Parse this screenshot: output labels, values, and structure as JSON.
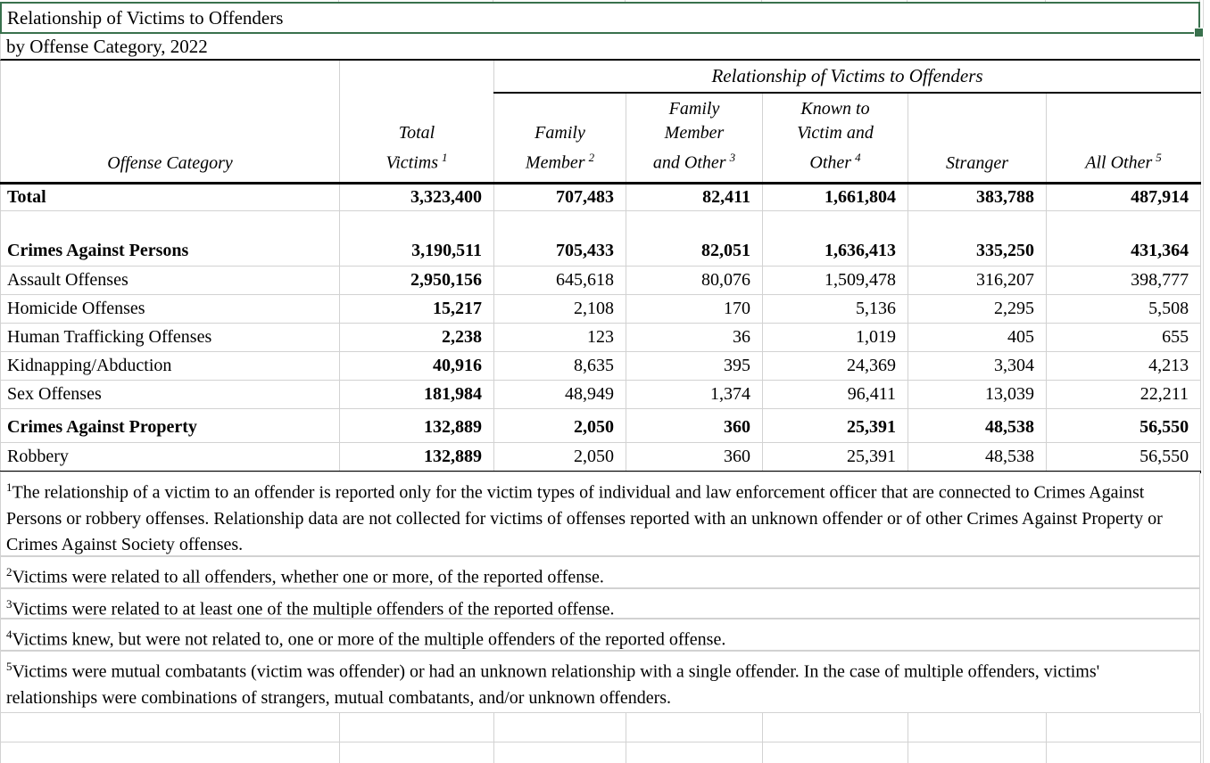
{
  "title_block": {
    "line1": "Relationship of Victims to Offenders",
    "line2": "by Offense Category, 2022"
  },
  "table": {
    "group_header": "Relationship of Victims to Offenders",
    "columns": [
      {
        "lines": [
          "Offense Category"
        ],
        "sup": ""
      },
      {
        "lines": [
          "Total",
          "Victims"
        ],
        "sup": "1"
      },
      {
        "lines": [
          "Family",
          "Member"
        ],
        "sup": "2"
      },
      {
        "lines": [
          "Family",
          "Member",
          "and Other"
        ],
        "sup": "3"
      },
      {
        "lines": [
          "Known to",
          "Victim and",
          "Other"
        ],
        "sup": "4"
      },
      {
        "lines": [
          "Stranger"
        ],
        "sup": ""
      },
      {
        "lines": [
          "All Other"
        ],
        "sup": "5"
      }
    ],
    "rows": [
      {
        "category": "Total",
        "bold": true,
        "indent": false,
        "gap_above": false,
        "values": [
          "3,323,400",
          "707,483",
          "82,411",
          "1,661,804",
          "383,788",
          "487,914"
        ]
      },
      {
        "category": "Crimes Against Persons",
        "bold": true,
        "indent": false,
        "gap_above": true,
        "values": [
          "3,190,511",
          "705,433",
          "82,051",
          "1,636,413",
          "335,250",
          "431,364"
        ]
      },
      {
        "category": "Assault Offenses",
        "bold": false,
        "indent": true,
        "gap_above": false,
        "values": [
          "2,950,156",
          "645,618",
          "80,076",
          "1,509,478",
          "316,207",
          "398,777"
        ]
      },
      {
        "category": "Homicide Offenses",
        "bold": false,
        "indent": true,
        "gap_above": false,
        "values": [
          "15,217",
          "2,108",
          "170",
          "5,136",
          "2,295",
          "5,508"
        ]
      },
      {
        "category": "Human Trafficking Offenses",
        "bold": false,
        "indent": true,
        "gap_above": false,
        "values": [
          "2,238",
          "123",
          "36",
          "1,019",
          "405",
          "655"
        ]
      },
      {
        "category": "Kidnapping/Abduction",
        "bold": false,
        "indent": true,
        "gap_above": false,
        "values": [
          "40,916",
          "8,635",
          "395",
          "24,369",
          "3,304",
          "4,213"
        ]
      },
      {
        "category": "Sex Offenses",
        "bold": false,
        "indent": true,
        "gap_above": false,
        "values": [
          "181,984",
          "48,949",
          "1,374",
          "96,411",
          "13,039",
          "22,211"
        ]
      },
      {
        "category": "Crimes Against Property",
        "bold": true,
        "indent": false,
        "gap_above": true,
        "values": [
          "132,889",
          "2,050",
          "360",
          "25,391",
          "48,538",
          "56,550"
        ]
      },
      {
        "category": "Robbery",
        "bold": false,
        "indent": true,
        "gap_above": false,
        "values": [
          "132,889",
          "2,050",
          "360",
          "25,391",
          "48,538",
          "56,550"
        ]
      }
    ]
  },
  "footnotes": [
    {
      "sup": "1",
      "text": "The relationship of a victim to an offender is reported only for the victim types of individual and law enforcement officer that are connected to Crimes Against Persons or robbery offenses. Relationship data are not collected for victims of offenses reported with an unknown offender or of other Crimes Against Property or Crimes Against Society offenses."
    },
    {
      "sup": "2",
      "text": "Victims were related to all offenders, whether one or more, of the reported offense."
    },
    {
      "sup": "3",
      "text": "Victims were related to at least one of the multiple offenders of the reported offense."
    },
    {
      "sup": "4",
      "text": "Victims knew, but were not related to, one or more of the multiple offenders of the reported offense."
    },
    {
      "sup": "5",
      "text": "Victims were mutual combatants (victim was offender) or had an unknown relationship with a single offender. In the case of multiple offenders, victims' relationships were combinations of strangers, mutual combatants, and/or unknown offenders."
    }
  ],
  "colors": {
    "selection_green": "#39714d",
    "gridline_gray": "#d2d2d2",
    "border_black": "#000000"
  }
}
